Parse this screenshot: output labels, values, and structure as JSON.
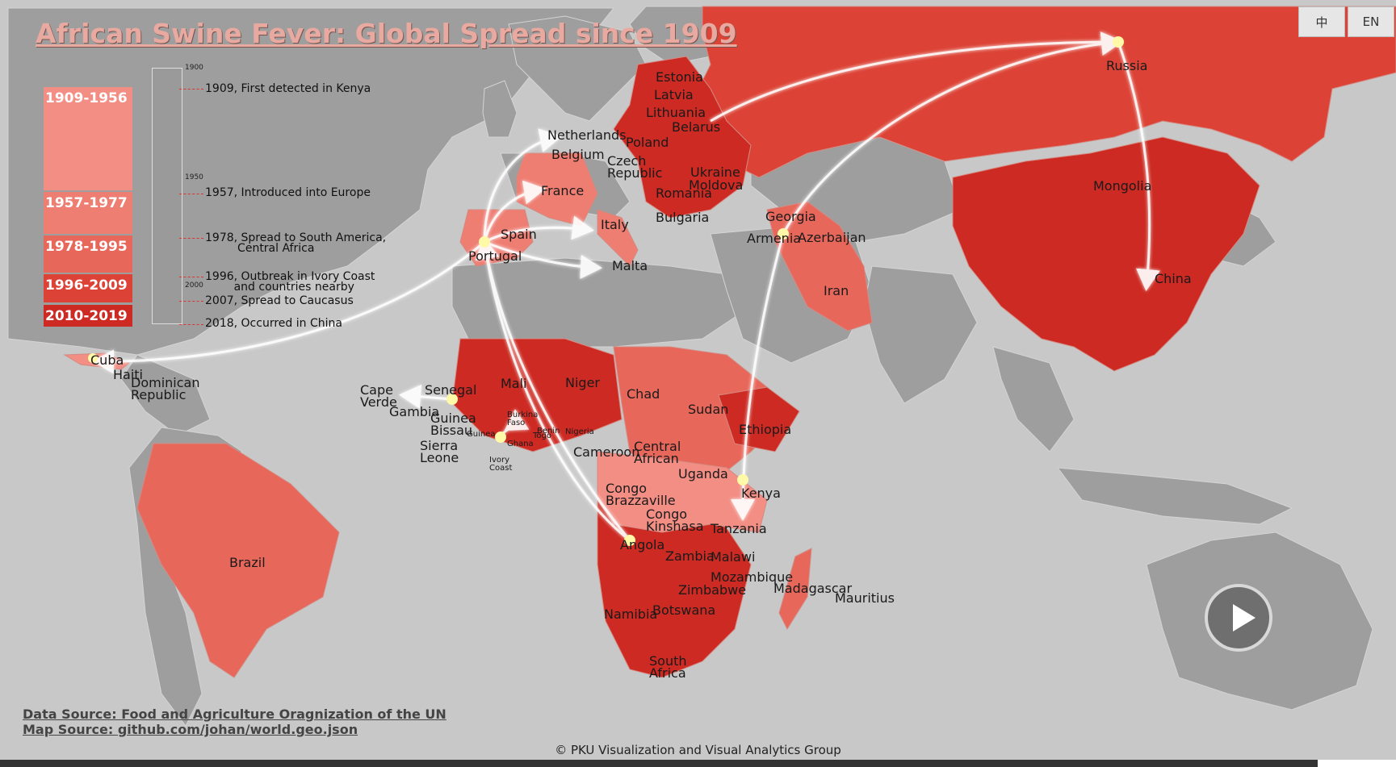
{
  "title": "African Swine Fever: Global Spread since 1909",
  "language_buttons": {
    "chinese": "中",
    "english": "EN"
  },
  "legend": {
    "periods": [
      {
        "label": "1909-1956",
        "color": "#f28e84"
      },
      {
        "label": "1957-1977",
        "color": "#ee7d72"
      },
      {
        "label": "1978-1995",
        "color": "#e8675b"
      },
      {
        "label": "1996-2009",
        "color": "#dc4336"
      },
      {
        "label": "2010-2019",
        "color": "#cc2a22"
      }
    ]
  },
  "timeline": {
    "years": [
      "1900",
      "1950",
      "2000"
    ],
    "events": [
      {
        "text": "1909, First detected in Kenya"
      },
      {
        "text": "1957, Introduced into Europe"
      },
      {
        "text": "1978, Spread to South America,\n         Central Africa"
      },
      {
        "text": "1996, Outbreak in Ivory Coast\n        and countries nearby"
      },
      {
        "text": "2007, Spread to Caucasus"
      },
      {
        "text": "2018, Occurred in China"
      }
    ]
  },
  "countries": {
    "estonia": "Estonia",
    "latvia": "Latvia",
    "lithuania": "Lithuania",
    "belarus": "Belarus",
    "netherlands": "Netherlands",
    "poland": "Poland",
    "belgium": "Belgium",
    "czech": "Czech\nRepublic",
    "ukraine": "Ukraine",
    "moldova": "Moldova",
    "romania": "Romania",
    "bulgaria": "Bulgaria",
    "france": "France",
    "italy": "Italy",
    "spain": "Spain",
    "portugal": "Portugal",
    "malta": "Malta",
    "russia": "Russia",
    "mongolia": "Mongolia",
    "china": "China",
    "georgia": "Georgia",
    "armenia": "Armenia",
    "azerbaijan": "Azerbaijan",
    "iran": "Iran",
    "cuba": "Cuba",
    "haiti": "Haiti",
    "dominican": "Dominican\nRepublic",
    "cape_verde": "Cape\nVerde",
    "senegal": "Senegal",
    "gambia": "Gambia",
    "guinea_bissau": "Guinea\nBissau",
    "sierra_leone": "Sierra\nLeone",
    "mali": "Mali",
    "niger": "Niger",
    "chad": "Chad",
    "sudan": "Sudan",
    "ethiopia": "Ethiopia",
    "burkina": "Burkina\nFaso",
    "guinea": "Guinea",
    "ghana": "Ghana",
    "togo": "Togo",
    "benin": "Benin",
    "nigeria": "Nigeria",
    "ivory_coast": "Ivory\nCoast",
    "cameroon": "Cameroon",
    "car": "Central\nAfrican",
    "uganda": "Uganda",
    "kenya": "Kenya",
    "congo_b": "Congo\nBrazzaville",
    "congo_k": "Congo\nKinshasa",
    "tanzania": "Tanzania",
    "angola": "Angola",
    "zambia": "Zambia",
    "malawi": "Malawi",
    "mozambique": "Mozambique",
    "zimbabwe": "Zimbabwe",
    "madagascar": "Madagascar",
    "mauritius": "Mauritius",
    "namibia": "Namibia",
    "botswana": "Botswana",
    "south_africa": "South\nAfrica",
    "brazil": "Brazil"
  },
  "sources": {
    "data": "Data Source: Food and Agriculture Oragnization of the UN",
    "map": "Map Source: github.com/johan/world.geo.json"
  },
  "footer": "© PKU Visualization and Visual Analytics Group",
  "colors": {
    "ocean": "#c8c8c8",
    "land": "#9e9e9e",
    "arrow": "#ffffff",
    "hub": "#fff9a8"
  }
}
